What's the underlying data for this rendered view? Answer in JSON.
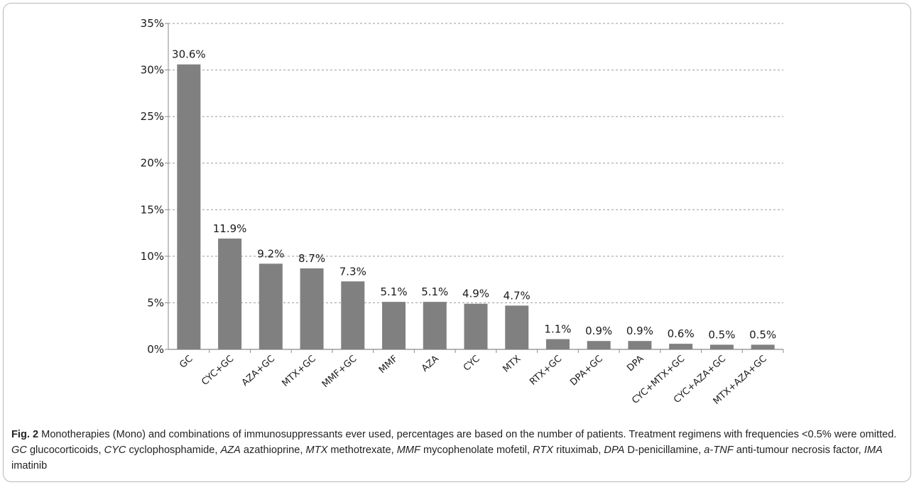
{
  "chart_data": {
    "type": "bar",
    "title": "",
    "xlabel": "",
    "ylabel": "",
    "categories": [
      "GC",
      "CYC+GC",
      "AZA+GC",
      "MTX+GC",
      "MMF+GC",
      "MMF",
      "AZA",
      "CYC",
      "MTX",
      "RTX+GC",
      "DPA+GC",
      "DPA",
      "CYC+MTX+GC",
      "CYC+AZA+GC",
      "MTX+AZA+GC"
    ],
    "values": [
      30.6,
      11.9,
      9.2,
      8.7,
      7.3,
      5.1,
      5.1,
      4.9,
      4.7,
      1.1,
      0.9,
      0.9,
      0.6,
      0.5,
      0.5
    ],
    "value_labels": [
      "30.6%",
      "11.9%",
      "9.2%",
      "8.7%",
      "7.3%",
      "5.1%",
      "5.1%",
      "4.9%",
      "4.7%",
      "1.1%",
      "0.9%",
      "0.9%",
      "0.6%",
      "0.5%",
      "0.5%"
    ],
    "ylim": [
      0,
      35
    ],
    "y_ticks": [
      0,
      5,
      10,
      15,
      20,
      25,
      30,
      35
    ],
    "y_tick_labels": [
      "0%",
      "5%",
      "10%",
      "15%",
      "20%",
      "25%",
      "30%",
      "35%"
    ],
    "grid": true,
    "legend": "none",
    "bar_color": "#808080",
    "grid_color": "#9a9a9a"
  },
  "caption": {
    "label": "Fig. 2",
    "segments": [
      {
        "t": " Monotherapies (Mono) and combinations of immunosuppressants ever used, percentages are based on the number of patients. Treatment regimens with frequencies <0.5% were omitted. ",
        "i": false
      },
      {
        "t": "GC",
        "i": true
      },
      {
        "t": " glucocorticoids, ",
        "i": false
      },
      {
        "t": "CYC",
        "i": true
      },
      {
        "t": " cyclophosphamide, ",
        "i": false
      },
      {
        "t": "AZA",
        "i": true
      },
      {
        "t": " azathioprine, ",
        "i": false
      },
      {
        "t": "MTX",
        "i": true
      },
      {
        "t": " methotrexate, ",
        "i": false
      },
      {
        "t": "MMF",
        "i": true
      },
      {
        "t": " mycophenolate mofetil, ",
        "i": false
      },
      {
        "t": "RTX",
        "i": true
      },
      {
        "t": " rituximab, ",
        "i": false
      },
      {
        "t": "DPA",
        "i": true
      },
      {
        "t": " D-penicillamine, ",
        "i": false
      },
      {
        "t": "a-TNF",
        "i": true
      },
      {
        "t": " anti-tumour necrosis factor, ",
        "i": false
      },
      {
        "t": "IMA",
        "i": true
      },
      {
        "t": " imatinib",
        "i": false
      }
    ]
  }
}
